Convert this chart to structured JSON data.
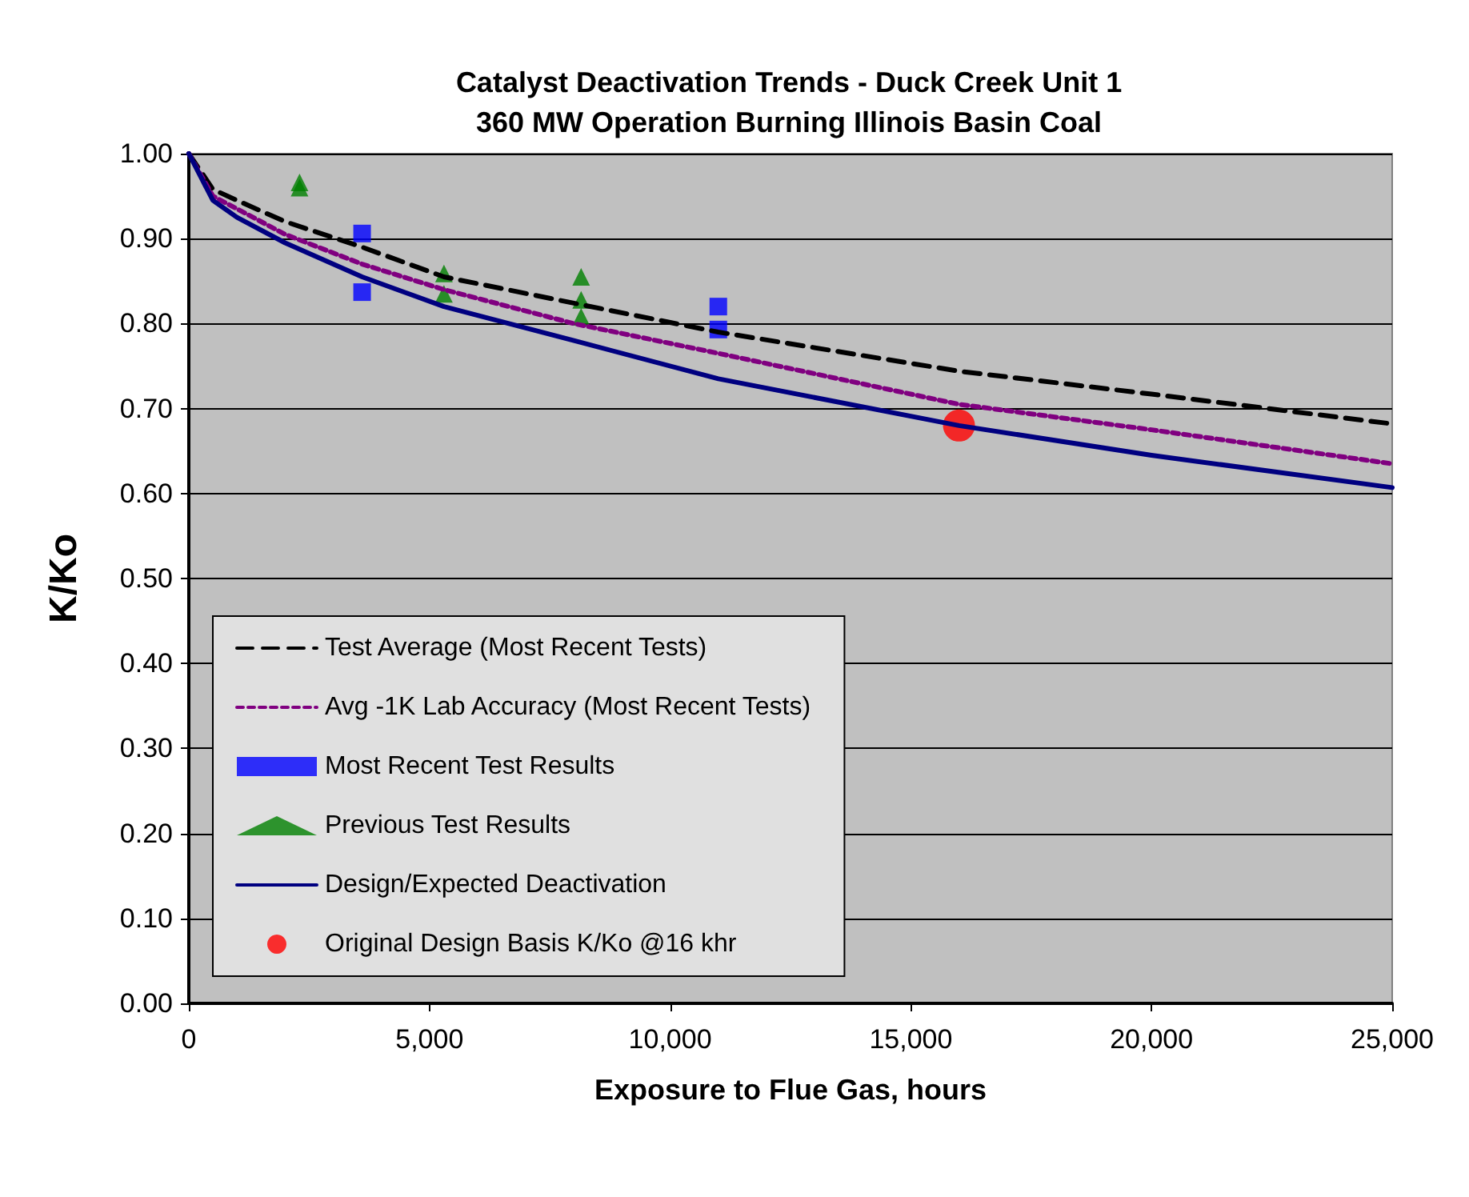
{
  "chart_data": {
    "type": "line",
    "title": "Catalyst Deactivation Trends - Duck Creek Unit 1\n360 MW Operation Burning Illinois Basin Coal",
    "xlabel": "Exposure to Flue Gas, hours",
    "ylabel": "K/Ko",
    "xlim": [
      0,
      25000
    ],
    "xticks": [
      {
        "value": 0,
        "label": "0"
      },
      {
        "value": 5000,
        "label": "5,000"
      },
      {
        "value": 10000,
        "label": "10,000"
      },
      {
        "value": 15000,
        "label": "15,000"
      },
      {
        "value": 20000,
        "label": "20,000"
      },
      {
        "value": 25000,
        "label": "25,000"
      }
    ],
    "ylim": [
      0,
      1
    ],
    "yticks": [
      {
        "value": 0,
        "label": "0.00"
      },
      {
        "value": 0.1,
        "label": "0.10"
      },
      {
        "value": 0.2,
        "label": "0.20"
      },
      {
        "value": 0.3,
        "label": "0.30"
      },
      {
        "value": 0.4,
        "label": "0.40"
      },
      {
        "value": 0.5,
        "label": "0.50"
      },
      {
        "value": 0.6,
        "label": "0.60"
      },
      {
        "value": 0.7,
        "label": "0.70"
      },
      {
        "value": 0.8,
        "label": "0.80"
      },
      {
        "value": 0.9,
        "label": "0.90"
      },
      {
        "value": 1,
        "label": "1.00"
      }
    ],
    "grid": "y",
    "legend": "bottom left",
    "series": [
      {
        "name": "Test Average (Most Recent Tests)",
        "line_style": "dashed",
        "marker": "none",
        "color": "#000000",
        "x": [
          0,
          500,
          1000,
          2000,
          3600,
          5300,
          8000,
          11000,
          16000,
          20000,
          25000
        ],
        "values": [
          1.0,
          0.958,
          0.945,
          0.92,
          0.89,
          0.855,
          0.824,
          0.79,
          0.744,
          0.717,
          0.682
        ]
      },
      {
        "name": "Avg -1K Lab Accuracy (Most Recent Tests)",
        "line_style": "dotted",
        "marker": "none",
        "color": "#800080",
        "x": [
          0,
          500,
          1000,
          2000,
          3600,
          5300,
          8000,
          11000,
          16000,
          20000,
          25000
        ],
        "values": [
          1.0,
          0.95,
          0.935,
          0.905,
          0.87,
          0.84,
          0.8,
          0.765,
          0.705,
          0.675,
          0.635
        ]
      },
      {
        "name": "Most Recent Test Results",
        "type": "scatter",
        "marker": "square",
        "color": "#0000ff",
        "x": [
          3600,
          3600,
          11000,
          11000
        ],
        "values": [
          0.906,
          0.837,
          0.82,
          0.793
        ]
      },
      {
        "name": "Previous Test Results",
        "type": "scatter",
        "marker": "triangle",
        "color": "#008000",
        "x": [
          2300,
          2300,
          5300,
          5300,
          8150,
          8150,
          8150
        ],
        "values": [
          0.966,
          0.96,
          0.859,
          0.835,
          0.855,
          0.828,
          0.808
        ]
      },
      {
        "name": "Design/Expected Deactivation",
        "line_style": "solid",
        "marker": "none",
        "color": "#000080",
        "x": [
          0,
          500,
          1000,
          2000,
          3600,
          5300,
          8000,
          11000,
          16000,
          20000,
          25000
        ],
        "values": [
          1.0,
          0.945,
          0.925,
          0.895,
          0.855,
          0.82,
          0.78,
          0.735,
          0.68,
          0.645,
          0.607
        ]
      },
      {
        "name": "Original Design Basis K/Ko @16 khr",
        "type": "scatter",
        "marker": "circle",
        "color": "#ff0000",
        "x": [
          16000
        ],
        "values": [
          0.68
        ]
      }
    ]
  }
}
